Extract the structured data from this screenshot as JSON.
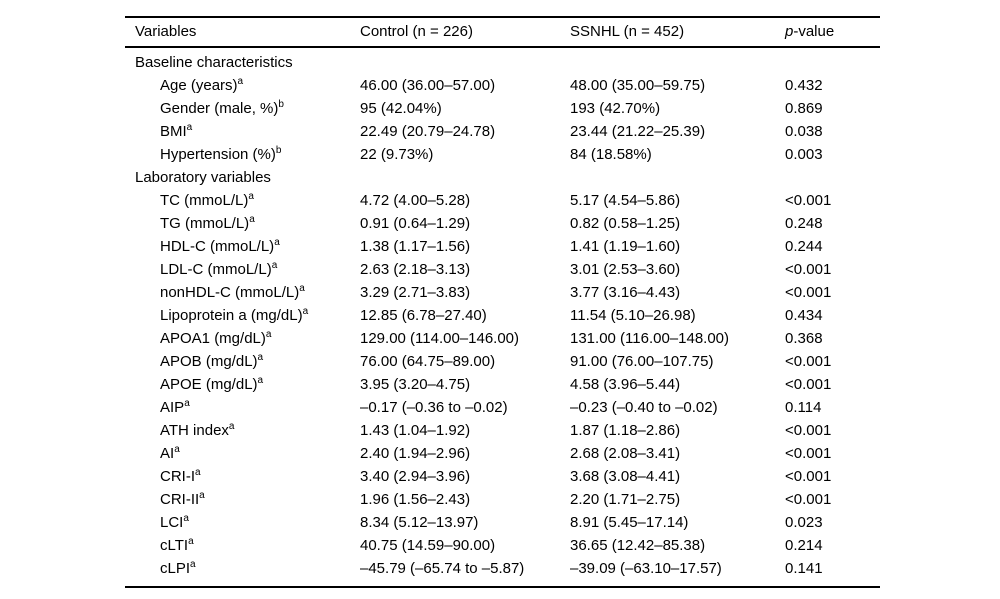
{
  "table": {
    "header": {
      "variables": "Variables",
      "control": "Control (n = 226)",
      "ssnhl": "SSNHL (n = 452)",
      "pvalue_italic": "p",
      "pvalue_rest": "-value"
    },
    "rows": [
      {
        "type": "section",
        "label": "Baseline characteristics"
      },
      {
        "type": "data",
        "label": "Age (years)",
        "sup": "a",
        "control": "46.00 (36.00–57.00)",
        "ssnhl": "48.00 (35.00–59.75)",
        "p": "0.432"
      },
      {
        "type": "data",
        "label": "Gender (male, %)",
        "sup": "b",
        "control": "95 (42.04%)",
        "ssnhl": "193 (42.70%)",
        "p": "0.869"
      },
      {
        "type": "data",
        "label": "BMI",
        "sup": "a",
        "control": "22.49 (20.79–24.78)",
        "ssnhl": "23.44 (21.22–25.39)",
        "p": "0.038"
      },
      {
        "type": "data",
        "label": "Hypertension (%)",
        "sup": "b",
        "control": "22 (9.73%)",
        "ssnhl": "84 (18.58%)",
        "p": "0.003"
      },
      {
        "type": "section",
        "label": "Laboratory variables"
      },
      {
        "type": "data",
        "label": "TC (mmoL/L)",
        "sup": "a",
        "control": "4.72 (4.00–5.28)",
        "ssnhl": "5.17 (4.54–5.86)",
        "p": "<0.001"
      },
      {
        "type": "data",
        "label": "TG (mmoL/L)",
        "sup": "a",
        "control": "0.91 (0.64–1.29)",
        "ssnhl": "0.82 (0.58–1.25)",
        "p": "0.248"
      },
      {
        "type": "data",
        "label": "HDL-C (mmoL/L)",
        "sup": "a",
        "control": "1.38 (1.17–1.56)",
        "ssnhl": "1.41 (1.19–1.60)",
        "p": "0.244"
      },
      {
        "type": "data",
        "label": "LDL-C (mmoL/L)",
        "sup": "a",
        "control": "2.63 (2.18–3.13)",
        "ssnhl": "3.01 (2.53–3.60)",
        "p": "<0.001"
      },
      {
        "type": "data",
        "label": "nonHDL-C (mmoL/L)",
        "sup": "a",
        "control": "3.29 (2.71–3.83)",
        "ssnhl": "3.77 (3.16–4.43)",
        "p": "<0.001"
      },
      {
        "type": "data",
        "label": "Lipoprotein a (mg/dL)",
        "sup": "a",
        "control": "12.85 (6.78–27.40)",
        "ssnhl": "11.54 (5.10–26.98)",
        "p": "0.434"
      },
      {
        "type": "data",
        "label": "APOA1 (mg/dL)",
        "sup": "a",
        "control": "129.00 (114.00–146.00)",
        "ssnhl": "131.00 (116.00–148.00)",
        "p": "0.368"
      },
      {
        "type": "data",
        "label": "APOB (mg/dL)",
        "sup": "a",
        "control": "76.00 (64.75–89.00)",
        "ssnhl": "91.00 (76.00–107.75)",
        "p": "<0.001"
      },
      {
        "type": "data",
        "label": "APOE (mg/dL)",
        "sup": "a",
        "control": "3.95 (3.20–4.75)",
        "ssnhl": "4.58 (3.96–5.44)",
        "p": "<0.001"
      },
      {
        "type": "data",
        "label": "AIP",
        "sup": "a",
        "control": "–0.17 (–0.36 to –0.02)",
        "ssnhl": "–0.23 (–0.40 to –0.02)",
        "p": "0.114"
      },
      {
        "type": "data",
        "label": "ATH index",
        "sup": "a",
        "control": "1.43 (1.04–1.92)",
        "ssnhl": "1.87 (1.18–2.86)",
        "p": "<0.001"
      },
      {
        "type": "data",
        "label": "AI",
        "sup": "a",
        "control": "2.40 (1.94–2.96)",
        "ssnhl": "2.68 (2.08–3.41)",
        "p": "<0.001"
      },
      {
        "type": "data",
        "label": "CRI-I",
        "sup": "a",
        "control": "3.40 (2.94–3.96)",
        "ssnhl": "3.68 (3.08–4.41)",
        "p": "<0.001"
      },
      {
        "type": "data",
        "label": "CRI-II",
        "sup": "a",
        "control": "1.96 (1.56–2.43)",
        "ssnhl": "2.20 (1.71–2.75)",
        "p": "<0.001"
      },
      {
        "type": "data",
        "label": "LCI",
        "sup": "a",
        "control": "8.34 (5.12–13.97)",
        "ssnhl": "8.91 (5.45–17.14)",
        "p": "0.023"
      },
      {
        "type": "data",
        "label": "cLTI",
        "sup": "a",
        "control": "40.75 (14.59–90.00)",
        "ssnhl": "36.65 (12.42–85.38)",
        "p": "0.214"
      },
      {
        "type": "data",
        "label": "cLPI",
        "sup": "a",
        "control": "–45.79 (–65.74 to –5.87)",
        "ssnhl": "–39.09 (–63.10–17.57)",
        "p": "0.141"
      }
    ]
  }
}
